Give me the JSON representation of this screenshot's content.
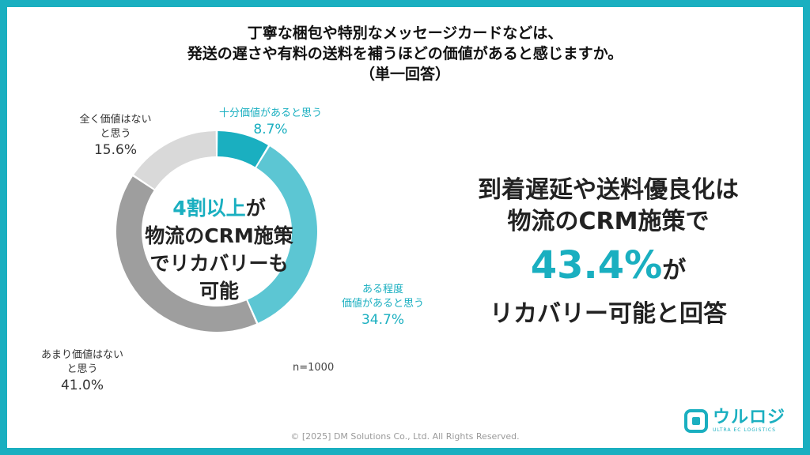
{
  "title": {
    "line1": "丁寧な梱包や特別なメッセージカードなどは、",
    "line2": "発送の遅さや有料の送料を補うほどの価値があると感じますか。",
    "line3": "（単一回答）"
  },
  "chart_data": {
    "type": "pie",
    "donut": true,
    "slices": [
      {
        "label_line1": "十分価値があると思う",
        "label_line2": "",
        "value": 8.7,
        "pct_text": "8.7%",
        "color": "#1AAFC0"
      },
      {
        "label_line1": "ある程度",
        "label_line2": "価値があると思う",
        "value": 34.7,
        "pct_text": "34.7%",
        "color": "#5CC6D3"
      },
      {
        "label_line1": "あまり価値はない",
        "label_line2": "と思う",
        "value": 41.0,
        "pct_text": "41.0%",
        "color": "#9E9E9E"
      },
      {
        "label_line1": "全く価値はない",
        "label_line2": "と思う",
        "value": 15.6,
        "pct_text": "15.6%",
        "color": "#D9D9D9"
      }
    ],
    "n_note": "n=1000"
  },
  "center": {
    "highlight": "4割以上",
    "highlight_suffix": "が",
    "line2": "物流のCRM施策",
    "line3": "でリカバリーも",
    "line4": "可能"
  },
  "right": {
    "line1": "到着遅延や送料優良化は",
    "line2": "物流のCRM施策で",
    "big": "43.4%",
    "big_suffix": "が",
    "line4": "リカバリー可能と回答"
  },
  "footer": {
    "copyright": "© [2025] DM Solutions Co., Ltd. All Rights Reserved."
  },
  "logo": {
    "main": "ウルロジ",
    "sub": "ULTRA EC LOGISTICS",
    "icon": "logo-mark-icon"
  },
  "colors": {
    "frame": "#1AAFC0",
    "accent": "#1AAFC0"
  }
}
